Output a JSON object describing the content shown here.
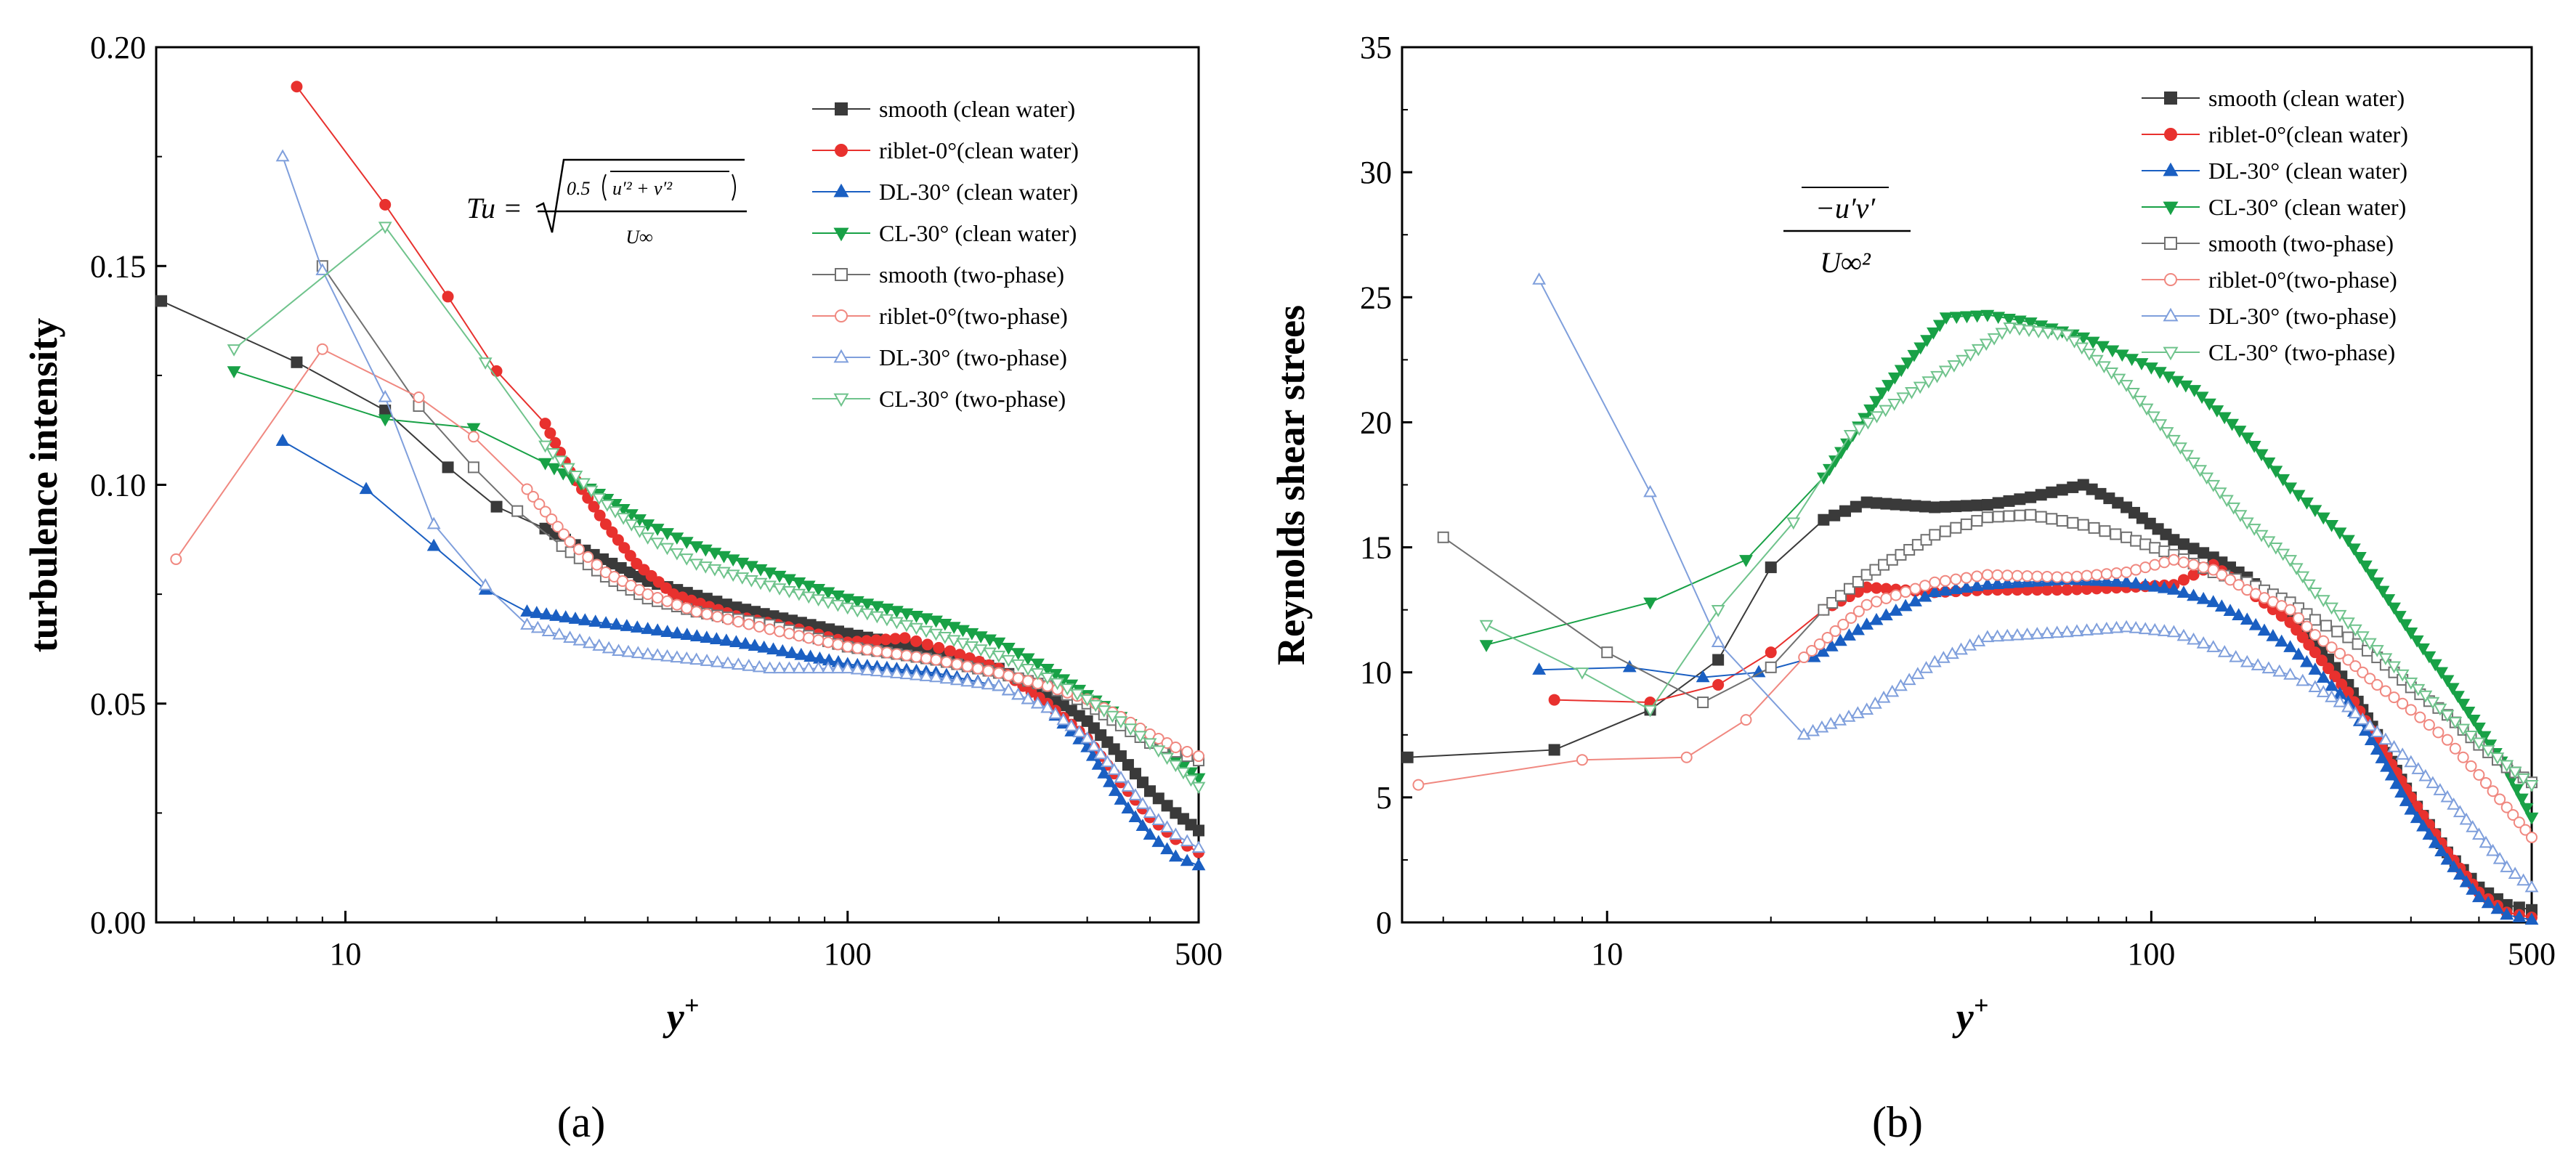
{
  "figure": {
    "panels": [
      "(a)",
      "(b)"
    ]
  },
  "colors": {
    "smooth": "#3a3a3a",
    "riblet": "#e8312e",
    "dl": "#1a5fc2",
    "cl": "#18a146",
    "dl_light": "#7f9fdc",
    "cl_light": "#6fc38c",
    "riblet_light": "#f08880",
    "smooth_light": "#707070"
  },
  "chart_data": [
    {
      "type": "line",
      "panel_label": "(a)",
      "title": "",
      "xlabel": "y+",
      "ylabel": "turbulence intensity",
      "xscale": "log",
      "xlim": [
        4.2,
        500
      ],
      "ylim": [
        0,
        0.2
      ],
      "xticks": [
        10,
        100,
        500
      ],
      "xtick_labels": [
        "10",
        "100",
        "500"
      ],
      "yticks": [
        0,
        0.05,
        0.1,
        0.15,
        0.2
      ],
      "ytick_labels": [
        "0.00",
        "0.05",
        "0.10",
        "0.15",
        "0.20"
      ],
      "annotation": {
        "lhs": "Tu =",
        "radicand_prefix": "0.5",
        "radicand_terms": "u′² + v′²",
        "denominator": "U∞"
      },
      "legend_position": "top-right",
      "series": [
        {
          "name": "smooth (clean water)",
          "color": "#3a3a3a",
          "marker": "square",
          "filled": true,
          "x": [
            4.3,
            8,
            12,
            16,
            20,
            25,
            30,
            40,
            60,
            100,
            150,
            200,
            250,
            300,
            350,
            400,
            450,
            500
          ],
          "y": [
            0.142,
            0.128,
            0.117,
            0.104,
            0.095,
            0.09,
            0.085,
            0.078,
            0.072,
            0.066,
            0.062,
            0.058,
            0.052,
            0.046,
            0.038,
            0.03,
            0.025,
            0.021
          ]
        },
        {
          "name": "riblet-0°(clean water)",
          "color": "#e8312e",
          "marker": "circle",
          "filled": true,
          "x": [
            8,
            12,
            16,
            20,
            25,
            28,
            33,
            38,
            45,
            60,
            80,
            100,
            130,
            160,
            200,
            250,
            300,
            350,
            400,
            450,
            500
          ],
          "y": [
            0.191,
            0.164,
            0.143,
            0.126,
            0.114,
            0.103,
            0.091,
            0.082,
            0.075,
            0.07,
            0.067,
            0.064,
            0.065,
            0.062,
            0.058,
            0.05,
            0.042,
            0.032,
            0.024,
            0.019,
            0.016
          ]
        },
        {
          "name": "DL-30° (clean water)",
          "color": "#1a5fc2",
          "marker": "triangle-up",
          "filled": true,
          "x": [
            7.5,
            11,
            15,
            19,
            23,
            30,
            40,
            60,
            100,
            150,
            200,
            250,
            300,
            350,
            400,
            450,
            500
          ],
          "y": [
            0.11,
            0.099,
            0.086,
            0.076,
            0.071,
            0.069,
            0.067,
            0.064,
            0.059,
            0.057,
            0.054,
            0.049,
            0.04,
            0.028,
            0.02,
            0.015,
            0.013
          ]
        },
        {
          "name": "CL-30° (clean water)",
          "color": "#18a146",
          "marker": "triangle-down",
          "filled": true,
          "x": [
            6,
            12,
            18,
            25,
            32,
            40,
            50,
            70,
            100,
            150,
            200,
            250,
            300,
            350,
            400,
            450,
            500
          ],
          "y": [
            0.126,
            0.115,
            0.113,
            0.105,
            0.098,
            0.091,
            0.086,
            0.08,
            0.074,
            0.069,
            0.064,
            0.058,
            0.052,
            0.047,
            0.042,
            0.037,
            0.033
          ]
        },
        {
          "name": "smooth  (two-phase)",
          "color": "#707070",
          "marker": "square",
          "filled": false,
          "x": [
            9,
            14,
            18,
            22,
            27,
            33,
            40,
            50,
            70,
            100,
            150,
            200,
            250,
            300,
            350,
            400,
            450,
            500
          ],
          "y": [
            0.15,
            0.118,
            0.104,
            0.094,
            0.086,
            0.079,
            0.074,
            0.071,
            0.068,
            0.063,
            0.06,
            0.057,
            0.054,
            0.05,
            0.045,
            0.041,
            0.039,
            0.037
          ]
        },
        {
          "name": "riblet-0°(two-phase)",
          "color": "#f08880",
          "marker": "circle",
          "filled": false,
          "x": [
            4.6,
            9,
            14,
            18,
            23,
            28,
            33,
            40,
            50,
            70,
            100,
            150,
            200,
            250,
            300,
            350,
            400,
            450,
            500
          ],
          "y": [
            0.083,
            0.131,
            0.12,
            0.111,
            0.099,
            0.087,
            0.08,
            0.075,
            0.071,
            0.067,
            0.063,
            0.06,
            0.057,
            0.054,
            0.051,
            0.047,
            0.043,
            0.04,
            0.038
          ]
        },
        {
          "name": "DL-30°  (two-phase)",
          "color": "#7f9fdc",
          "marker": "triangle-up",
          "filled": false,
          "x": [
            7.5,
            9,
            12,
            15,
            19,
            23,
            28,
            35,
            50,
            70,
            100,
            150,
            200,
            250,
            300,
            350,
            400,
            450,
            500
          ],
          "y": [
            0.175,
            0.149,
            0.12,
            0.091,
            0.077,
            0.068,
            0.065,
            0.062,
            0.06,
            0.058,
            0.058,
            0.056,
            0.054,
            0.049,
            0.042,
            0.033,
            0.025,
            0.02,
            0.017
          ]
        },
        {
          "name": "CL-30°  (two-phase)",
          "color": "#6fc38c",
          "marker": "triangle-down",
          "filled": false,
          "x": [
            6,
            12,
            19,
            25,
            32,
            40,
            50,
            70,
            100,
            150,
            200,
            250,
            300,
            350,
            400,
            450,
            500
          ],
          "y": [
            0.131,
            0.159,
            0.128,
            0.109,
            0.097,
            0.088,
            0.082,
            0.077,
            0.072,
            0.066,
            0.061,
            0.056,
            0.051,
            0.046,
            0.041,
            0.036,
            0.031
          ]
        }
      ]
    },
    {
      "type": "line",
      "panel_label": "(b)",
      "title": "",
      "xlabel": "y+",
      "ylabel": "Reynolds shear strees",
      "xscale": "log",
      "xlim": [
        4.2,
        500
      ],
      "ylim": [
        0,
        35
      ],
      "xticks": [
        10,
        100,
        500
      ],
      "xtick_labels": [
        "10",
        "100",
        "500"
      ],
      "yticks": [
        0,
        5,
        10,
        15,
        20,
        25,
        30,
        35
      ],
      "ytick_labels": [
        "0",
        "5",
        "10",
        "15",
        "20",
        "25",
        "30",
        "35"
      ],
      "annotation": {
        "numerator": "−u′v′",
        "denominator": "U∞²"
      },
      "legend_position": "top-right",
      "series": [
        {
          "name": "smooth (clean water)",
          "color": "#3a3a3a",
          "marker": "square",
          "filled": true,
          "x": [
            4.3,
            8,
            12,
            16,
            20,
            25,
            30,
            40,
            50,
            60,
            75,
            90,
            110,
            130,
            150,
            180,
            200,
            230,
            260,
            300,
            350,
            400,
            450,
            500
          ],
          "y": [
            6.6,
            6.9,
            8.5,
            10.5,
            14.2,
            16.1,
            16.8,
            16.6,
            16.7,
            17.0,
            17.5,
            16.6,
            15.3,
            14.6,
            13.8,
            12.2,
            11.2,
            9.5,
            7.5,
            5.0,
            2.8,
            1.4,
            0.7,
            0.5
          ]
        },
        {
          "name": "riblet-0°(clean water)",
          "color": "#e8312e",
          "marker": "circle",
          "filled": true,
          "x": [
            8,
            12,
            16,
            20,
            25,
            30,
            40,
            50,
            70,
            90,
            110,
            130,
            150,
            180,
            200,
            230,
            260,
            300,
            350,
            400,
            450,
            500
          ],
          "y": [
            8.9,
            8.8,
            9.5,
            10.8,
            12.5,
            13.4,
            13.2,
            13.3,
            13.3,
            13.4,
            13.5,
            14.3,
            13.3,
            12.0,
            10.8,
            9.2,
            7.3,
            5.0,
            2.8,
            1.2,
            0.4,
            0.2
          ]
        },
        {
          "name": "DL-30° (clean water)",
          "color": "#1a5fc2",
          "marker": "triangle-up",
          "filled": true,
          "x": [
            7.5,
            11,
            15,
            19,
            24,
            30,
            40,
            50,
            70,
            90,
            110,
            130,
            150,
            180,
            200,
            230,
            260,
            300,
            350,
            400,
            450,
            500
          ],
          "y": [
            10.1,
            10.2,
            9.8,
            10.0,
            10.6,
            11.9,
            13.2,
            13.5,
            13.7,
            13.6,
            13.3,
            12.8,
            12.1,
            11.0,
            10.1,
            8.8,
            6.9,
            4.5,
            2.5,
            1.0,
            0.3,
            0.1
          ]
        },
        {
          "name": "CL-30° (clean water)",
          "color": "#18a146",
          "marker": "triangle-down",
          "filled": true,
          "x": [
            6,
            12,
            18,
            25,
            32,
            42,
            50,
            60,
            75,
            100,
            120,
            150,
            180,
            200,
            230,
            260,
            300,
            350,
            400,
            450,
            500
          ],
          "y": [
            11.1,
            12.8,
            14.5,
            17.8,
            21.2,
            24.2,
            24.3,
            24.0,
            23.4,
            22.2,
            21.3,
            19.4,
            17.4,
            16.5,
            15.3,
            13.6,
            11.6,
            9.7,
            7.8,
            6.1,
            4.2
          ]
        },
        {
          "name": "smooth (two-phase)",
          "color": "#707070",
          "marker": "square",
          "filled": false,
          "x": [
            5,
            10,
            15,
            20,
            25,
            30,
            40,
            50,
            60,
            75,
            90,
            110,
            130,
            150,
            180,
            200,
            230,
            260,
            300,
            350,
            400,
            450,
            500
          ],
          "y": [
            15.4,
            10.8,
            8.8,
            10.2,
            12.5,
            13.9,
            15.5,
            16.2,
            16.3,
            15.9,
            15.4,
            14.7,
            14.0,
            13.6,
            12.8,
            12.1,
            11.4,
            10.6,
            9.4,
            8.3,
            7.1,
            6.2,
            5.6
          ]
        },
        {
          "name": "riblet-0°(two-phase)",
          "color": "#f08880",
          "marker": "circle",
          "filled": false,
          "x": [
            4.5,
            9,
            14,
            18,
            23,
            30,
            40,
            50,
            70,
            90,
            110,
            130,
            150,
            180,
            200,
            230,
            260,
            300,
            350,
            400,
            450,
            500
          ],
          "y": [
            5.5,
            6.5,
            6.6,
            8.1,
            10.6,
            12.7,
            13.6,
            13.9,
            13.8,
            14.0,
            14.5,
            14.1,
            13.3,
            12.5,
            11.5,
            10.5,
            9.5,
            8.5,
            7.3,
            5.9,
            4.6,
            3.4
          ]
        },
        {
          "name": "DL-30° (two-phase)",
          "color": "#7f9fdc",
          "marker": "triangle-up",
          "filled": false,
          "x": [
            7.5,
            12,
            16,
            23,
            30,
            40,
            50,
            70,
            90,
            110,
            130,
            150,
            180,
            200,
            230,
            260,
            300,
            350,
            400,
            450,
            500
          ],
          "y": [
            25.7,
            17.2,
            11.2,
            7.5,
            8.5,
            10.4,
            11.4,
            11.6,
            11.8,
            11.6,
            11.0,
            10.4,
            9.9,
            9.4,
            8.6,
            7.6,
            6.4,
            5.0,
            3.5,
            2.2,
            1.4
          ]
        },
        {
          "name": "CL-30° (two-phase)",
          "color": "#6fc38c",
          "marker": "triangle-down",
          "filled": false,
          "x": [
            6,
            9,
            12,
            16,
            22,
            28,
            35,
            45,
            55,
            70,
            90,
            110,
            130,
            150,
            180,
            200,
            230,
            260,
            300,
            350,
            400,
            450,
            500
          ],
          "y": [
            11.9,
            10.0,
            8.5,
            12.5,
            16.0,
            19.5,
            21.0,
            22.5,
            23.8,
            23.5,
            21.5,
            19.3,
            17.5,
            16.0,
            14.5,
            13.2,
            12.0,
            10.9,
            9.6,
            8.3,
            7.2,
            6.3,
            5.5
          ]
        }
      ]
    }
  ]
}
